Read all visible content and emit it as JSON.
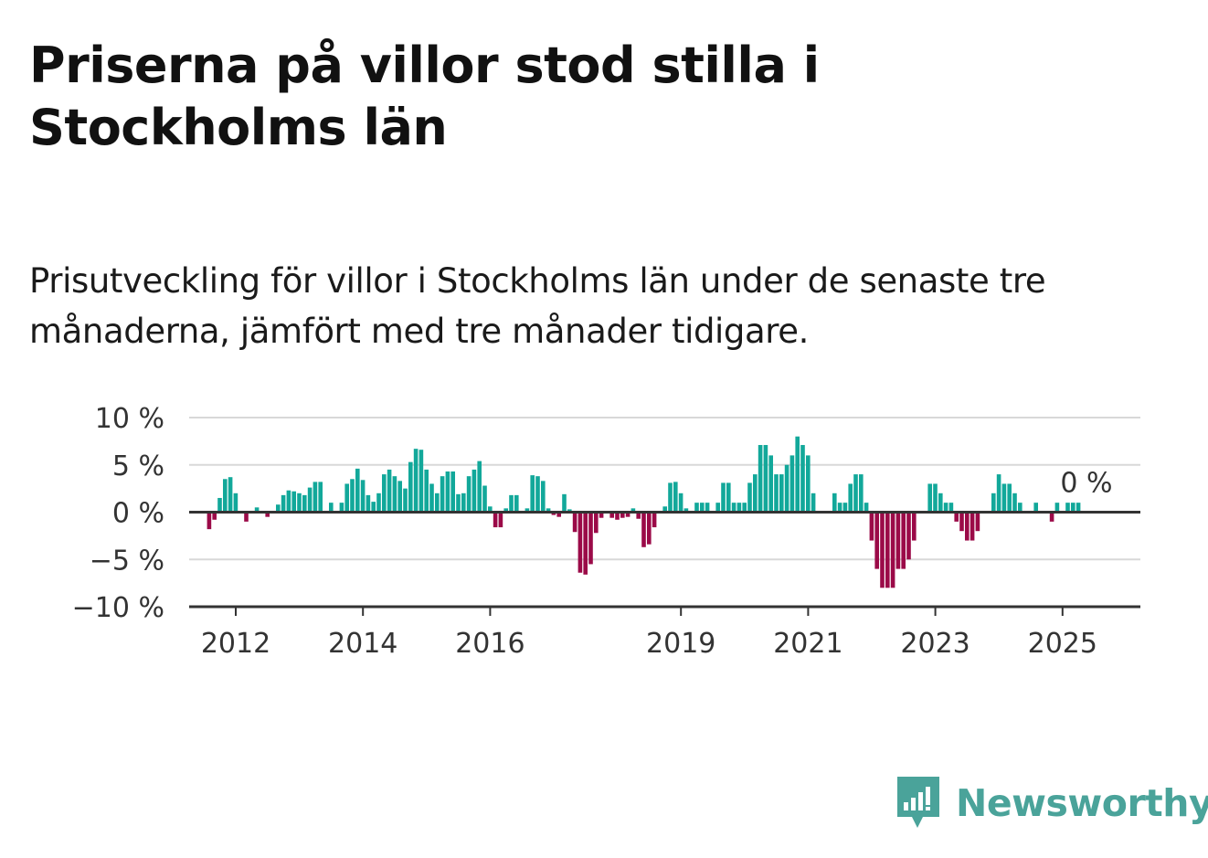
{
  "title": "Priserna på villor stod stilla i Stockholms län",
  "subtitle": "Prisutveckling för villor i Stockholms län under de senaste tre månaderna, jämfört med tre månader tidigare.",
  "brand": {
    "name": "Newsworthy",
    "color": "#4aa39a",
    "icon": "newsworthy-bar-chart-icon"
  },
  "colors": {
    "positive": "#12a89a",
    "negative": "#9b0a48",
    "grid": "#d8d8d8",
    "axis": "#333333"
  },
  "chart_data": {
    "type": "bar",
    "ylim": [
      -10,
      10
    ],
    "yticks": [
      {
        "value": 10,
        "label": "10 %"
      },
      {
        "value": 5,
        "label": "5 %"
      },
      {
        "value": 0,
        "label": "0 %"
      },
      {
        "value": -5,
        "label": "−5 %"
      },
      {
        "value": -10,
        "label": "−10 %"
      }
    ],
    "xticks": [
      {
        "year": 2012,
        "label": "2012"
      },
      {
        "year": 2014,
        "label": "2014"
      },
      {
        "year": 2016,
        "label": "2016"
      },
      {
        "year": 2019,
        "label": "2019"
      },
      {
        "year": 2021,
        "label": "2021"
      },
      {
        "year": 2023,
        "label": "2023"
      },
      {
        "year": 2025,
        "label": "2025"
      }
    ],
    "start": "2012-01",
    "values": [
      -1.8,
      -0.8,
      1.5,
      3.5,
      3.7,
      2.0,
      0,
      -1.0,
      0,
      0.5,
      0,
      -0.5,
      0,
      0.8,
      1.8,
      2.3,
      2.2,
      2.0,
      1.8,
      2.6,
      3.2,
      3.2,
      0,
      1.0,
      0,
      1.0,
      3.0,
      3.5,
      4.6,
      3.4,
      1.8,
      1.1,
      2.0,
      4.0,
      4.5,
      3.8,
      3.3,
      2.5,
      5.3,
      6.7,
      6.6,
      4.5,
      3.0,
      2.0,
      3.8,
      4.3,
      4.3,
      1.9,
      2.0,
      3.8,
      4.5,
      5.4,
      2.8,
      0.6,
      -1.6,
      -1.6,
      0.4,
      1.8,
      1.8,
      0,
      0.4,
      3.9,
      3.8,
      3.3,
      0.4,
      -0.3,
      -0.5,
      1.9,
      0.3,
      -2.1,
      -6.4,
      -6.6,
      -5.5,
      -2.2,
      -0.6,
      0,
      -0.6,
      -0.8,
      -0.6,
      -0.5,
      0.4,
      -0.7,
      -3.7,
      -3.4,
      -1.6,
      0,
      0.6,
      3.1,
      3.2,
      2.0,
      0.4,
      0,
      1.0,
      1.0,
      1.0,
      0,
      1.0,
      3.1,
      3.1,
      1.0,
      1.0,
      1.0,
      3.1,
      4.0,
      7.1,
      7.1,
      6.0,
      4.0,
      4.0,
      5.0,
      6.0,
      8.0,
      7.1,
      6.0,
      2.0,
      0,
      0,
      0,
      2.0,
      1.0,
      1.0,
      3.0,
      4.0,
      4.0,
      1.0,
      -3.0,
      -6.0,
      -8.0,
      -8.0,
      -8.0,
      -6.0,
      -6.0,
      -5.0,
      -3.0,
      0,
      0,
      3.0,
      3.0,
      2.0,
      1.0,
      1.0,
      -1.0,
      -2.0,
      -3.0,
      -3.0,
      -2.0,
      0,
      0,
      2.0,
      4.0,
      3.0,
      3.0,
      2.0,
      1.0,
      0,
      0,
      1.0,
      0,
      0,
      -1.0,
      1.0,
      0,
      1.0,
      1.0,
      1.0,
      0
    ],
    "last_value_label": "0 %",
    "grid": true,
    "legend": "none"
  }
}
